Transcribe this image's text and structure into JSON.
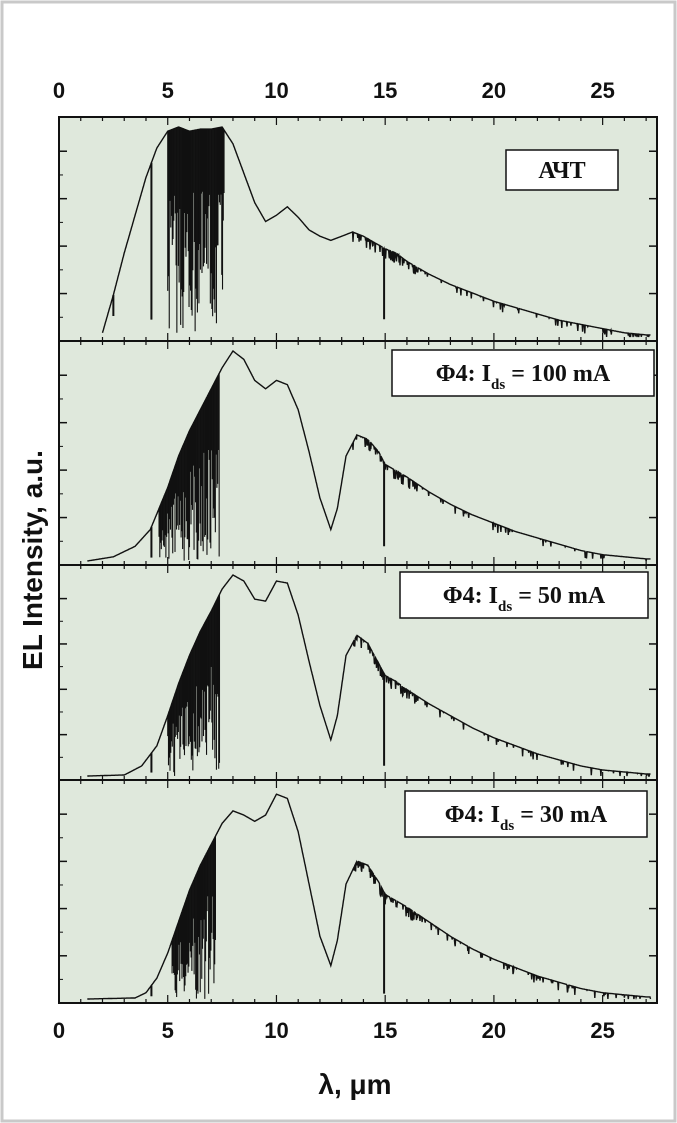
{
  "chart_data": {
    "type": "line",
    "layout": "stacked-panels",
    "xlabel": "λ, μm",
    "ylabel": "EL Intensity, a.u.",
    "xlim": [
      0,
      27.5
    ],
    "x_ticks": [
      0,
      5,
      10,
      15,
      20,
      25
    ],
    "y_tick_labels_shown": false,
    "grid": false,
    "panel_background": "#dfe8dc",
    "line_color": "#111111",
    "panels": [
      {
        "label": "АЧТ",
        "profile": [
          [
            2.0,
            0.02
          ],
          [
            2.5,
            0.2
          ],
          [
            3,
            0.4
          ],
          [
            3.5,
            0.58
          ],
          [
            4,
            0.76
          ],
          [
            4.5,
            0.9
          ],
          [
            5,
            0.98
          ],
          [
            5.5,
            1.0
          ],
          [
            6,
            0.98
          ],
          [
            6.5,
            0.99
          ],
          [
            7,
            0.99
          ],
          [
            7.5,
            1.0
          ],
          [
            8,
            0.92
          ],
          [
            8.5,
            0.78
          ],
          [
            9,
            0.64
          ],
          [
            9.5,
            0.55
          ],
          [
            10,
            0.58
          ],
          [
            10.5,
            0.62
          ],
          [
            11,
            0.57
          ],
          [
            11.5,
            0.51
          ],
          [
            12,
            0.48
          ],
          [
            12.5,
            0.46
          ],
          [
            13,
            0.48
          ],
          [
            13.5,
            0.5
          ],
          [
            14,
            0.48
          ],
          [
            14.5,
            0.45
          ],
          [
            15,
            0.42
          ],
          [
            15.5,
            0.4
          ],
          [
            16,
            0.36
          ],
          [
            17,
            0.3
          ],
          [
            18,
            0.25
          ],
          [
            19,
            0.21
          ],
          [
            20,
            0.17
          ],
          [
            21,
            0.14
          ],
          [
            22,
            0.11
          ],
          [
            23,
            0.08
          ],
          [
            24,
            0.06
          ],
          [
            25,
            0.04
          ],
          [
            26,
            0.02
          ],
          [
            27,
            0.01
          ]
        ],
        "dips": [
          [
            2.5,
            0.5
          ],
          [
            4.25,
            0.9
          ],
          [
            14.95,
            0.8
          ]
        ],
        "dense_band": [
          5.0,
          7.6
        ]
      },
      {
        "label_main": "Φ4: I",
        "label_sub": "ds",
        "label_tail": " = 100 mA",
        "profile": [
          [
            1.3,
            0.0
          ],
          [
            2.5,
            0.02
          ],
          [
            3.5,
            0.07
          ],
          [
            4.2,
            0.15
          ],
          [
            5,
            0.35
          ],
          [
            5.5,
            0.5
          ],
          [
            6,
            0.62
          ],
          [
            6.5,
            0.72
          ],
          [
            7,
            0.82
          ],
          [
            7.5,
            0.92
          ],
          [
            8,
            1.0
          ],
          [
            8.5,
            0.96
          ],
          [
            9,
            0.86
          ],
          [
            9.5,
            0.82
          ],
          [
            10,
            0.86
          ],
          [
            10.5,
            0.84
          ],
          [
            11,
            0.72
          ],
          [
            11.5,
            0.52
          ],
          [
            12,
            0.3
          ],
          [
            12.5,
            0.15
          ],
          [
            12.8,
            0.25
          ],
          [
            13.2,
            0.5
          ],
          [
            13.7,
            0.6
          ],
          [
            14.2,
            0.58
          ],
          [
            14.7,
            0.52
          ],
          [
            15,
            0.46
          ],
          [
            15.5,
            0.43
          ],
          [
            16,
            0.4
          ],
          [
            17,
            0.33
          ],
          [
            18,
            0.27
          ],
          [
            19,
            0.22
          ],
          [
            20,
            0.18
          ],
          [
            21,
            0.14
          ],
          [
            22,
            0.11
          ],
          [
            23,
            0.08
          ],
          [
            24,
            0.05
          ],
          [
            25,
            0.03
          ],
          [
            26,
            0.02
          ],
          [
            27,
            0.01
          ]
        ],
        "dips": [
          [
            4.25,
            0.9
          ],
          [
            14.95,
            0.85
          ]
        ],
        "dense_band": [
          4.6,
          7.4
        ]
      },
      {
        "label_main": "Φ4: I",
        "label_sub": "ds",
        "label_tail": " = 50 mA",
        "profile": [
          [
            1.3,
            0.0
          ],
          [
            3,
            0.005
          ],
          [
            3.8,
            0.05
          ],
          [
            4.5,
            0.15
          ],
          [
            5,
            0.3
          ],
          [
            5.5,
            0.46
          ],
          [
            6,
            0.6
          ],
          [
            6.5,
            0.72
          ],
          [
            7,
            0.82
          ],
          [
            7.5,
            0.93
          ],
          [
            8,
            1.0
          ],
          [
            8.5,
            0.97
          ],
          [
            9,
            0.88
          ],
          [
            9.5,
            0.87
          ],
          [
            10,
            0.97
          ],
          [
            10.5,
            0.96
          ],
          [
            11,
            0.8
          ],
          [
            11.5,
            0.57
          ],
          [
            12,
            0.35
          ],
          [
            12.5,
            0.18
          ],
          [
            12.8,
            0.3
          ],
          [
            13.2,
            0.6
          ],
          [
            13.7,
            0.7
          ],
          [
            14.2,
            0.66
          ],
          [
            14.7,
            0.56
          ],
          [
            15,
            0.5
          ],
          [
            15.5,
            0.47
          ],
          [
            16,
            0.43
          ],
          [
            17,
            0.36
          ],
          [
            18,
            0.3
          ],
          [
            19,
            0.24
          ],
          [
            20,
            0.19
          ],
          [
            21,
            0.15
          ],
          [
            22,
            0.11
          ],
          [
            23,
            0.08
          ],
          [
            24,
            0.05
          ],
          [
            25,
            0.03
          ],
          [
            26,
            0.02
          ],
          [
            27,
            0.01
          ]
        ],
        "dips": [
          [
            4.25,
            0.85
          ],
          [
            14.95,
            0.9
          ]
        ],
        "dense_band": [
          5.0,
          7.4
        ]
      },
      {
        "label_main": "Φ4: I",
        "label_sub": "ds",
        "label_tail": " = 30 mA",
        "profile": [
          [
            1.3,
            0.0
          ],
          [
            3.5,
            0.005
          ],
          [
            4,
            0.03
          ],
          [
            4.5,
            0.1
          ],
          [
            5,
            0.22
          ],
          [
            5.5,
            0.37
          ],
          [
            6,
            0.52
          ],
          [
            6.5,
            0.64
          ],
          [
            7,
            0.74
          ],
          [
            7.5,
            0.84
          ],
          [
            8,
            0.9
          ],
          [
            8.5,
            0.88
          ],
          [
            9,
            0.85
          ],
          [
            9.5,
            0.88
          ],
          [
            10,
            0.98
          ],
          [
            10.5,
            0.96
          ],
          [
            11,
            0.8
          ],
          [
            11.5,
            0.55
          ],
          [
            12,
            0.3
          ],
          [
            12.5,
            0.16
          ],
          [
            12.8,
            0.28
          ],
          [
            13.2,
            0.55
          ],
          [
            13.7,
            0.66
          ],
          [
            14.2,
            0.64
          ],
          [
            14.7,
            0.56
          ],
          [
            15,
            0.5
          ],
          [
            15.5,
            0.47
          ],
          [
            16,
            0.44
          ],
          [
            17,
            0.37
          ],
          [
            18,
            0.3
          ],
          [
            19,
            0.24
          ],
          [
            20,
            0.19
          ],
          [
            21,
            0.15
          ],
          [
            22,
            0.11
          ],
          [
            23,
            0.08
          ],
          [
            24,
            0.05
          ],
          [
            25,
            0.03
          ],
          [
            26,
            0.02
          ],
          [
            27,
            0.01
          ]
        ],
        "dips": [
          [
            4.25,
            0.8
          ],
          [
            14.95,
            0.95
          ]
        ],
        "dense_band": [
          5.2,
          7.2
        ]
      }
    ]
  }
}
